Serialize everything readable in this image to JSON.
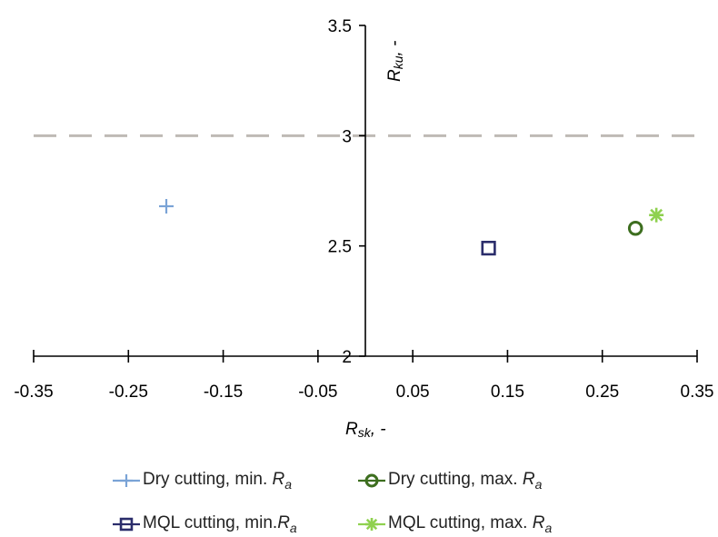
{
  "chart_data": {
    "type": "scatter",
    "x_axis": {
      "label_main": "R",
      "label_sub": "sk",
      "label_tail": ", -",
      "range": [
        -0.35,
        0.35
      ],
      "ticks": [
        "-0.35",
        "-0.25",
        "-0.15",
        "-0.05",
        "0.05",
        "0.15",
        "0.25",
        "0.35"
      ],
      "tick_values": [
        -0.35,
        -0.25,
        -0.15,
        -0.05,
        0.05,
        0.15,
        0.25,
        0.35
      ]
    },
    "y_axis": {
      "label_main": "R",
      "label_sub": "ku",
      "label_tail": ", -",
      "range": [
        2,
        3.5
      ],
      "ticks": [
        "2",
        "2.5",
        "3",
        "3.5"
      ],
      "tick_values": [
        2,
        2.5,
        3,
        3.5
      ]
    },
    "reference_line": {
      "y": 3,
      "style": "dashed",
      "color": "#bfbab5"
    },
    "grid": false,
    "legend_position": "bottom",
    "series": [
      {
        "name": "Dry cutting, min. Ra",
        "name_text": "Dry cutting, min. ",
        "name_symbol": "Ra",
        "marker": "plus",
        "color": "#7aa3d6",
        "points": [
          {
            "x": -0.21,
            "y": 2.68
          }
        ]
      },
      {
        "name": "Dry cutting, max. Ra",
        "name_text": "Dry cutting, max. ",
        "name_symbol": "Ra",
        "marker": "circle",
        "color": "#3d6e1f",
        "points": [
          {
            "x": 0.285,
            "y": 2.58
          }
        ]
      },
      {
        "name": "MQL cutting, min. Ra",
        "name_text": "MQL cutting, min.",
        "name_symbol": "Ra",
        "marker": "square",
        "color": "#2b2d6b",
        "points": [
          {
            "x": 0.13,
            "y": 2.49
          }
        ]
      },
      {
        "name": "MQL cutting, max. Ra",
        "name_text": "MQL cutting, max. ",
        "name_symbol": "Ra",
        "marker": "star",
        "color": "#8fd14f",
        "points": [
          {
            "x": 0.307,
            "y": 2.64
          }
        ]
      }
    ]
  }
}
